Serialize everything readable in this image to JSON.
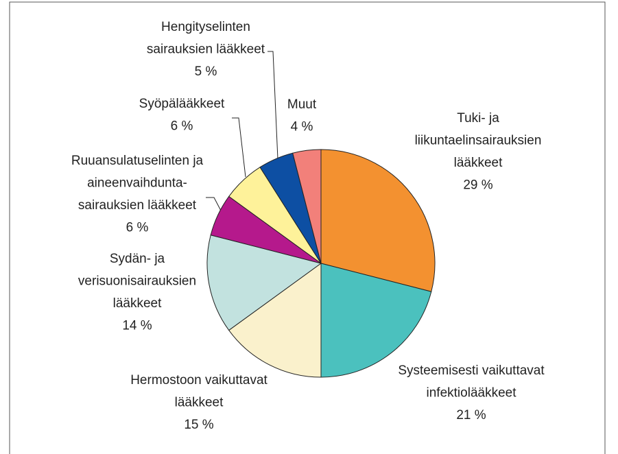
{
  "chart_data": {
    "type": "pie",
    "categories": [
      "Tuki- ja\nliikuntaelinsairauksien\nlääkkeet",
      "Systeemisesti vaikuttavat\ninfektiolääkkeet",
      "Hermostoon vaikuttavat\nlääkkeet",
      "Sydän- ja\nverisuonisairauksien\nlääkkeet",
      "Ruuansulatuselinten ja\naineenvaihdunta-\nsairauksien lääkkeet",
      "Syöpälääkkeet",
      "Hengityselinten\nsairauksien lääkkeet",
      "Muut"
    ],
    "values": [
      29,
      21,
      15,
      14,
      6,
      6,
      5,
      4
    ],
    "value_labels": [
      "29 %",
      "21 %",
      "15 %",
      "14 %",
      "6 %",
      "6 %",
      "5 %",
      "4 %"
    ],
    "colors": [
      "#f39130",
      "#4bc1be",
      "#faf1cc",
      "#c2e2df",
      "#b5198c",
      "#fef29a",
      "#0d4fa3",
      "#f2807a"
    ]
  }
}
